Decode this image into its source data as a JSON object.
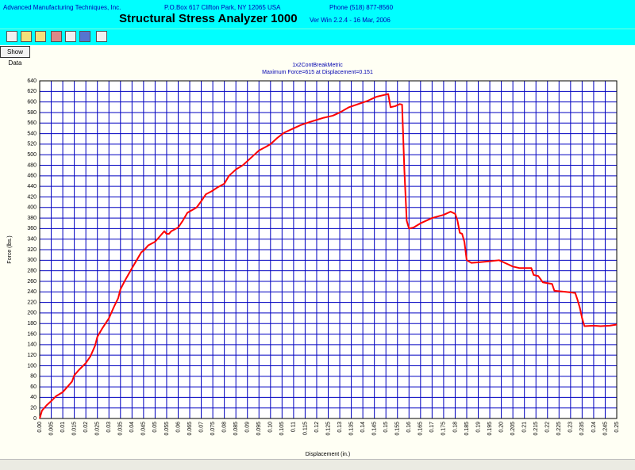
{
  "header": {
    "company": "Advanced Manufacturing Techniques, Inc.",
    "address": "P.O.Box 617 Clifton Park, NY 12065 USA",
    "phone": "Phone (518) 877-8560",
    "title": "Structural Stress Analyzer 1000",
    "version": "Ver Win 2.2.4 - 16 Mar, 2006"
  },
  "button": "Show Data",
  "chart_data": {
    "type": "line",
    "title": "1x2ContBreakMetric",
    "subtitle": "Maximum Force=615 at Displacement=0.151",
    "x_label": "Displacement (in.)",
    "y_label": "Force (lbs.)",
    "color": "#ff0000",
    "grid": true,
    "x": [
      0,
      0.001,
      0.003,
      0.005,
      0.007,
      0.01,
      0.012,
      0.014,
      0.015,
      0.017,
      0.02,
      0.022,
      0.024,
      0.025,
      0.027,
      0.03,
      0.032,
      0.034,
      0.035,
      0.037,
      0.04,
      0.042,
      0.044,
      0.045,
      0.047,
      0.05,
      0.052,
      0.054,
      0.055,
      0.056,
      0.057,
      0.06,
      0.062,
      0.064,
      0.066,
      0.068,
      0.07,
      0.072,
      0.075,
      0.077,
      0.08,
      0.082,
      0.085,
      0.088,
      0.09,
      0.093,
      0.095,
      0.098,
      0.1,
      0.103,
      0.106,
      0.11,
      0.113,
      0.117,
      0.12,
      0.123,
      0.127,
      0.13,
      0.134,
      0.138,
      0.142,
      0.146,
      0.15,
      0.151,
      0.152,
      0.154,
      0.156,
      0.157,
      0.158,
      0.159,
      0.16,
      0.162,
      0.165,
      0.17,
      0.175,
      0.178,
      0.18,
      0.181,
      0.182,
      0.183,
      0.184,
      0.185,
      0.187,
      0.19,
      0.195,
      0.199,
      0.2,
      0.203,
      0.205,
      0.208,
      0.213,
      0.214,
      0.216,
      0.218,
      0.222,
      0.223,
      0.228,
      0.232,
      0.233,
      0.234,
      0.235,
      0.236,
      0.24,
      0.243,
      0.247,
      0.25
    ],
    "values": [
      0,
      15,
      25,
      33,
      42,
      50,
      60,
      70,
      82,
      92,
      105,
      118,
      138,
      155,
      170,
      190,
      210,
      228,
      245,
      262,
      285,
      300,
      315,
      318,
      328,
      335,
      345,
      355,
      350,
      350,
      355,
      362,
      375,
      390,
      395,
      400,
      412,
      425,
      432,
      438,
      445,
      460,
      472,
      480,
      488,
      500,
      508,
      515,
      520,
      532,
      542,
      550,
      556,
      562,
      566,
      570,
      574,
      580,
      590,
      596,
      602,
      610,
      614,
      615,
      590,
      592,
      596,
      595,
      470,
      375,
      360,
      362,
      370,
      380,
      386,
      392,
      388,
      375,
      352,
      350,
      335,
      300,
      295,
      296,
      298,
      300,
      298,
      292,
      288,
      285,
      285,
      272,
      270,
      258,
      255,
      242,
      240,
      238,
      225,
      210,
      190,
      175,
      176,
      175,
      176,
      178
    ],
    "xlim": [
      0,
      0.25
    ],
    "xticks": [
      {
        "value": 0,
        "label": "0.00"
      },
      0.005,
      0.01,
      0.015,
      0.02,
      0.025,
      0.03,
      0.035,
      0.04,
      0.045,
      0.05,
      0.055,
      0.06,
      0.065,
      0.07,
      0.075,
      0.08,
      0.085,
      0.09,
      0.095,
      {
        "value": 0.1,
        "label": "0.10"
      },
      0.105,
      0.11,
      0.115,
      0.12,
      0.125,
      0.13,
      0.135,
      0.14,
      0.145,
      0.15,
      0.155,
      0.16,
      0.165,
      0.17,
      0.175,
      0.18,
      0.185,
      0.19,
      0.195,
      {
        "value": 0.2,
        "label": "0.20"
      },
      0.205,
      0.21,
      0.215,
      0.22,
      0.225,
      0.23,
      0.235,
      0.24,
      0.245,
      0.25
    ],
    "ylim": [
      0,
      640
    ],
    "yticks": [
      0,
      20,
      40,
      60,
      80,
      100,
      120,
      140,
      160,
      180,
      200,
      220,
      240,
      260,
      280,
      300,
      320,
      340,
      360,
      380,
      400,
      420,
      440,
      460,
      480,
      500,
      520,
      540,
      560,
      580,
      600,
      620,
      640
    ]
  }
}
